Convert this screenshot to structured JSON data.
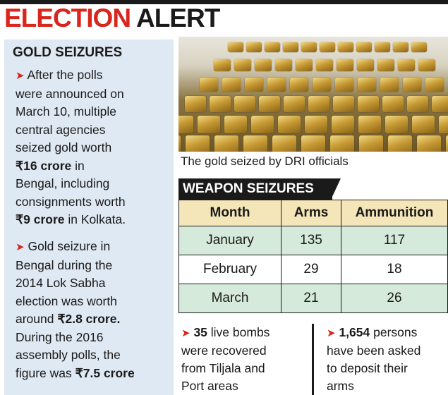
{
  "headline": {
    "word1": "ELECTION",
    "word2": "ALERT"
  },
  "gold_seizures": {
    "title": "GOLD SEIZURES",
    "bullet1": {
      "lines": [
        "After the polls",
        "were announced on",
        "March 10, multiple",
        "central agencies",
        "seized gold worth"
      ],
      "amount1": "₹16 crore",
      "after_amount1": " in",
      "line7": "Bengal, including",
      "line8": "consignments worth",
      "amount2": "₹9 crore",
      "after_amount2": " in Kolkata."
    },
    "bullet2": {
      "lines": [
        "Gold seizure in",
        "Bengal during the",
        "2014 Lok Sabha",
        "election was worth"
      ],
      "before_amount1": "around ",
      "amount1": "₹2.8 crore.",
      "lines2": [
        "During the 2016",
        "assembly polls, the"
      ],
      "before_amount2": "figure was ",
      "amount2": "₹7.5 crore"
    }
  },
  "photo": {
    "caption": "The gold seized by DRI officials"
  },
  "weapon_seizures": {
    "title": "WEAPON SEIZURES",
    "headers": [
      "Month",
      "Arms",
      "Ammunition"
    ],
    "rows": [
      [
        "January",
        "135",
        "117"
      ],
      [
        "February",
        "29",
        "18"
      ],
      [
        "March",
        "21",
        "26"
      ]
    ]
  },
  "bottom_notes": {
    "note1": {
      "bold": "35",
      "lines": [
        " live bombs",
        "were recovered",
        "from Tiljala and",
        "Port areas"
      ]
    },
    "note2": {
      "bold": "1,654",
      "lines": [
        " persons",
        "have been asked",
        "to deposit their",
        "arms"
      ]
    }
  }
}
